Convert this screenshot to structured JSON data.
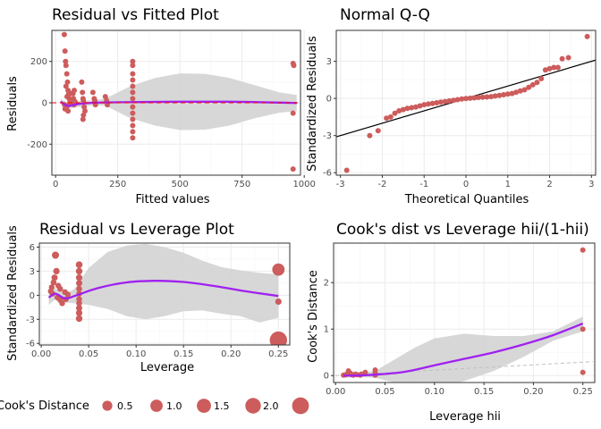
{
  "colors": {
    "point": "#CD5C5C",
    "smooth": "#A020F0",
    "band": "#D3D3D3",
    "refline": "#FF0000",
    "qqline": "#000000",
    "cookref": "#BFBFBF",
    "grid_major": "#EBEBEB",
    "grid_minor": "#F5F5F5",
    "border": "#333333"
  },
  "legend": {
    "title": "Cook's Distance",
    "position": "bottom",
    "entries": [
      "0.5",
      "1.0",
      "1.5",
      "2.0"
    ],
    "sizes": [
      0.5,
      1.0,
      1.5,
      2.0,
      2.5
    ]
  },
  "chart_data": [
    {
      "type": "scatter",
      "title": "Residual vs Fitted Plot",
      "xlabel": "Fitted values",
      "ylabel": "Residuals",
      "xlim": [
        -15,
        985
      ],
      "ylim": [
        -350,
        350
      ],
      "xticks": [
        0,
        250,
        500,
        750,
        1000
      ],
      "xtick_labels": [
        "0",
        "250",
        "500",
        "750",
        "1000"
      ],
      "yticks": [
        -200,
        0,
        200
      ],
      "ytick_labels": [
        "-200",
        "0",
        "200"
      ],
      "hline": 0,
      "grid": true,
      "points": [
        [
          35,
          330
        ],
        [
          38,
          250
        ],
        [
          40,
          200
        ],
        [
          42,
          180
        ],
        [
          45,
          140
        ],
        [
          48,
          100
        ],
        [
          50,
          60
        ],
        [
          52,
          40
        ],
        [
          55,
          20
        ],
        [
          58,
          10
        ],
        [
          36,
          -10
        ],
        [
          44,
          -20
        ],
        [
          50,
          -40
        ],
        [
          46,
          30
        ],
        [
          60,
          45
        ],
        [
          42,
          80
        ],
        [
          38,
          -30
        ],
        [
          56,
          -5
        ],
        [
          70,
          45
        ],
        [
          72,
          20
        ],
        [
          74,
          -10
        ],
        [
          75,
          60
        ],
        [
          78,
          5
        ],
        [
          105,
          100
        ],
        [
          108,
          50
        ],
        [
          110,
          20
        ],
        [
          112,
          10
        ],
        [
          115,
          -20
        ],
        [
          118,
          -40
        ],
        [
          112,
          -60
        ],
        [
          110,
          -80
        ],
        [
          150,
          50
        ],
        [
          155,
          20
        ],
        [
          158,
          10
        ],
        [
          160,
          -10
        ],
        [
          200,
          30
        ],
        [
          205,
          10
        ],
        [
          208,
          -10
        ],
        [
          310,
          200
        ],
        [
          310,
          180
        ],
        [
          310,
          140
        ],
        [
          310,
          110
        ],
        [
          310,
          80
        ],
        [
          310,
          50
        ],
        [
          310,
          20
        ],
        [
          310,
          -20
        ],
        [
          310,
          -50
        ],
        [
          310,
          -80
        ],
        [
          310,
          -110
        ],
        [
          310,
          -140
        ],
        [
          310,
          -170
        ],
        [
          955,
          190
        ],
        [
          958,
          180
        ],
        [
          955,
          -50
        ],
        [
          955,
          -320
        ]
      ],
      "smooth": [
        [
          20,
          5
        ],
        [
          50,
          -15
        ],
        [
          80,
          -8
        ],
        [
          150,
          0
        ],
        [
          300,
          3
        ],
        [
          500,
          5
        ],
        [
          700,
          5
        ],
        [
          900,
          1
        ],
        [
          970,
          -1
        ]
      ],
      "band": [
        [
          20,
          18,
          -8
        ],
        [
          50,
          0,
          -30
        ],
        [
          80,
          7,
          -23
        ],
        [
          150,
          12,
          -12
        ],
        [
          200,
          20,
          -14
        ],
        [
          300,
          80,
          -74
        ],
        [
          400,
          120,
          -110
        ],
        [
          500,
          142,
          -132
        ],
        [
          600,
          140,
          -130
        ],
        [
          700,
          120,
          -110
        ],
        [
          800,
          85,
          -75
        ],
        [
          900,
          50,
          -48
        ],
        [
          970,
          38,
          -40
        ]
      ]
    },
    {
      "type": "scatter",
      "title": "Normal Q-Q",
      "xlabel": "Theoretical Quantiles",
      "ylabel": "Standardized Residuals",
      "xlim": [
        -3.1,
        3.1
      ],
      "ylim": [
        -6.2,
        5.5
      ],
      "xticks": [
        -3,
        -2,
        -1,
        0,
        1,
        2,
        3
      ],
      "xtick_labels": [
        "-3",
        "-2",
        "-1",
        "0",
        "1",
        "2",
        "3"
      ],
      "yticks": [
        -6,
        -3,
        0,
        3
      ],
      "ytick_labels": [
        "-6",
        "-3",
        "0",
        "3"
      ],
      "grid": true,
      "qqline": [
        [
          -3.1,
          -3.1
        ],
        [
          3.1,
          3.1
        ]
      ],
      "points": [
        [
          -2.85,
          -5.8
        ],
        [
          -2.3,
          -3.0
        ],
        [
          -2.1,
          -2.6
        ],
        [
          -1.9,
          -1.6
        ],
        [
          -1.8,
          -1.5
        ],
        [
          -1.7,
          -1.2
        ],
        [
          -1.6,
          -1.0
        ],
        [
          -1.5,
          -0.9
        ],
        [
          -1.4,
          -0.8
        ],
        [
          -1.3,
          -0.75
        ],
        [
          -1.2,
          -0.7
        ],
        [
          -1.1,
          -0.6
        ],
        [
          -1.0,
          -0.5
        ],
        [
          -0.9,
          -0.45
        ],
        [
          -0.8,
          -0.4
        ],
        [
          -0.7,
          -0.35
        ],
        [
          -0.6,
          -0.3
        ],
        [
          -0.5,
          -0.25
        ],
        [
          -0.4,
          -0.2
        ],
        [
          -0.3,
          -0.15
        ],
        [
          -0.2,
          -0.1
        ],
        [
          -0.1,
          -0.05
        ],
        [
          0,
          0
        ],
        [
          0.1,
          0.02
        ],
        [
          0.2,
          0.05
        ],
        [
          0.3,
          0.08
        ],
        [
          0.4,
          0.1
        ],
        [
          0.5,
          0.12
        ],
        [
          0.6,
          0.15
        ],
        [
          0.7,
          0.2
        ],
        [
          0.8,
          0.25
        ],
        [
          0.9,
          0.3
        ],
        [
          1.0,
          0.35
        ],
        [
          1.1,
          0.4
        ],
        [
          1.2,
          0.5
        ],
        [
          1.3,
          0.6
        ],
        [
          1.4,
          0.7
        ],
        [
          1.5,
          0.9
        ],
        [
          1.6,
          1.1
        ],
        [
          1.7,
          1.3
        ],
        [
          1.8,
          1.6
        ],
        [
          1.9,
          2.3
        ],
        [
          2.0,
          2.4
        ],
        [
          2.1,
          2.5
        ],
        [
          2.2,
          2.5
        ],
        [
          2.3,
          3.2
        ],
        [
          2.45,
          3.3
        ],
        [
          2.9,
          5.0
        ]
      ]
    },
    {
      "type": "scatter",
      "title": "Residual vs Leverage Plot",
      "xlabel": "Leverage",
      "ylabel": "Standardized Residuals",
      "xlim": [
        -0.002,
        0.262
      ],
      "ylim": [
        -6.2,
        6.5
      ],
      "xticks": [
        0,
        0.05,
        0.1,
        0.15,
        0.2,
        0.25
      ],
      "xtick_labels": [
        "0.00",
        "0.05",
        "0.10",
        "0.15",
        "0.20",
        "0.25"
      ],
      "yticks": [
        -6,
        -3,
        0,
        3,
        6
      ],
      "ytick_labels": [
        "-6",
        "-3",
        "0",
        "3",
        "6"
      ],
      "grid": true,
      "points": [
        [
          0.01,
          0.5,
          0.02
        ],
        [
          0.011,
          1.0,
          0.02
        ],
        [
          0.012,
          0.2,
          0.02
        ],
        [
          0.013,
          1.6,
          0.03
        ],
        [
          0.014,
          2.2,
          0.04
        ],
        [
          0.015,
          5.0,
          0.1
        ],
        [
          0.016,
          3.0,
          0.05
        ],
        [
          0.017,
          -0.3,
          0.02
        ],
        [
          0.018,
          1.2,
          0.02
        ],
        [
          0.02,
          0.8,
          0.02
        ],
        [
          0.02,
          -0.6,
          0.02
        ],
        [
          0.022,
          -1.0,
          0.02
        ],
        [
          0.025,
          0.4,
          0.02
        ],
        [
          0.026,
          -0.5,
          0.02
        ],
        [
          0.028,
          0.1,
          0.02
        ],
        [
          0.04,
          3.8,
          0.08
        ],
        [
          0.04,
          3.0,
          0.06
        ],
        [
          0.04,
          2.2,
          0.05
        ],
        [
          0.04,
          1.5,
          0.04
        ],
        [
          0.04,
          0.8,
          0.03
        ],
        [
          0.04,
          0.2,
          0.02
        ],
        [
          0.04,
          -0.5,
          0.03
        ],
        [
          0.04,
          -1.0,
          0.03
        ],
        [
          0.04,
          -1.6,
          0.04
        ],
        [
          0.04,
          -2.2,
          0.05
        ],
        [
          0.04,
          -2.9,
          0.06
        ],
        [
          0.25,
          3.2,
          1.0
        ],
        [
          0.25,
          -0.8,
          0.05
        ],
        [
          0.25,
          -5.6,
          2.7
        ]
      ],
      "smooth": [
        [
          0.008,
          -0.3
        ],
        [
          0.015,
          0.2
        ],
        [
          0.025,
          -0.4
        ],
        [
          0.035,
          -0.1
        ],
        [
          0.06,
          0.9
        ],
        [
          0.09,
          1.6
        ],
        [
          0.12,
          1.8
        ],
        [
          0.15,
          1.65
        ],
        [
          0.18,
          1.2
        ],
        [
          0.21,
          0.6
        ],
        [
          0.25,
          -0.1
        ]
      ],
      "band": [
        [
          0.008,
          0.6,
          -1.2
        ],
        [
          0.015,
          0.9,
          -0.5
        ],
        [
          0.025,
          0.1,
          -0.9
        ],
        [
          0.035,
          0.8,
          -1.0
        ],
        [
          0.05,
          3.4,
          -1.2
        ],
        [
          0.07,
          5.4,
          -1.7
        ],
        [
          0.09,
          6.2,
          -2.6
        ],
        [
          0.11,
          6.4,
          -3.0
        ],
        [
          0.13,
          6.0,
          -2.6
        ],
        [
          0.15,
          5.3,
          -2.0
        ],
        [
          0.17,
          4.3,
          -1.9
        ],
        [
          0.19,
          3.5,
          -2.3
        ],
        [
          0.21,
          3.1,
          -2.6
        ],
        [
          0.23,
          2.8,
          -3.4
        ],
        [
          0.25,
          2.6,
          -2.8
        ]
      ]
    },
    {
      "type": "scatter",
      "title": "Cook's dist vs Leverage hii/(1-hii)",
      "xlabel": "Leverage hii",
      "ylabel": "Cook's Distance",
      "xlim": [
        -0.002,
        0.262
      ],
      "ylim": [
        -0.15,
        2.85
      ],
      "xticks": [
        0,
        0.05,
        0.1,
        0.15,
        0.2,
        0.25
      ],
      "xtick_labels": [
        "0.00",
        "0.05",
        "0.10",
        "0.15",
        "0.20",
        "0.25"
      ],
      "yticks": [
        0,
        1,
        2
      ],
      "ytick_labels": [
        "0",
        "1",
        "2"
      ],
      "grid": true,
      "points": [
        [
          0.008,
          0.01
        ],
        [
          0.01,
          0.02
        ],
        [
          0.012,
          0.03
        ],
        [
          0.013,
          0.1
        ],
        [
          0.015,
          0.05
        ],
        [
          0.016,
          0.02
        ],
        [
          0.018,
          0.01
        ],
        [
          0.02,
          0.03
        ],
        [
          0.022,
          0.02
        ],
        [
          0.025,
          0.01
        ],
        [
          0.026,
          0.03
        ],
        [
          0.03,
          0.07
        ],
        [
          0.04,
          0.12
        ],
        [
          0.04,
          0.06
        ],
        [
          0.04,
          0.03
        ],
        [
          0.04,
          0.01
        ],
        [
          0.25,
          2.7
        ],
        [
          0.25,
          1.0
        ],
        [
          0.25,
          0.07
        ]
      ],
      "smooth": [
        [
          0.008,
          0.0
        ],
        [
          0.02,
          0.0
        ],
        [
          0.04,
          0.02
        ],
        [
          0.07,
          0.08
        ],
        [
          0.1,
          0.22
        ],
        [
          0.13,
          0.36
        ],
        [
          0.16,
          0.5
        ],
        [
          0.19,
          0.67
        ],
        [
          0.22,
          0.87
        ],
        [
          0.25,
          1.12
        ]
      ],
      "band": [
        [
          0.008,
          0.05,
          -0.05
        ],
        [
          0.02,
          0.05,
          -0.03
        ],
        [
          0.04,
          0.1,
          -0.05
        ],
        [
          0.06,
          0.35,
          -0.15
        ],
        [
          0.08,
          0.6,
          -0.2
        ],
        [
          0.1,
          0.8,
          -0.25
        ],
        [
          0.13,
          0.9,
          -0.12
        ],
        [
          0.16,
          0.85,
          0.1
        ],
        [
          0.19,
          0.85,
          0.4
        ],
        [
          0.22,
          0.95,
          0.75
        ],
        [
          0.25,
          1.27,
          0.95
        ]
      ],
      "refline": [
        [
          0.0,
          0.0
        ],
        [
          0.26,
          0.3
        ]
      ]
    }
  ]
}
